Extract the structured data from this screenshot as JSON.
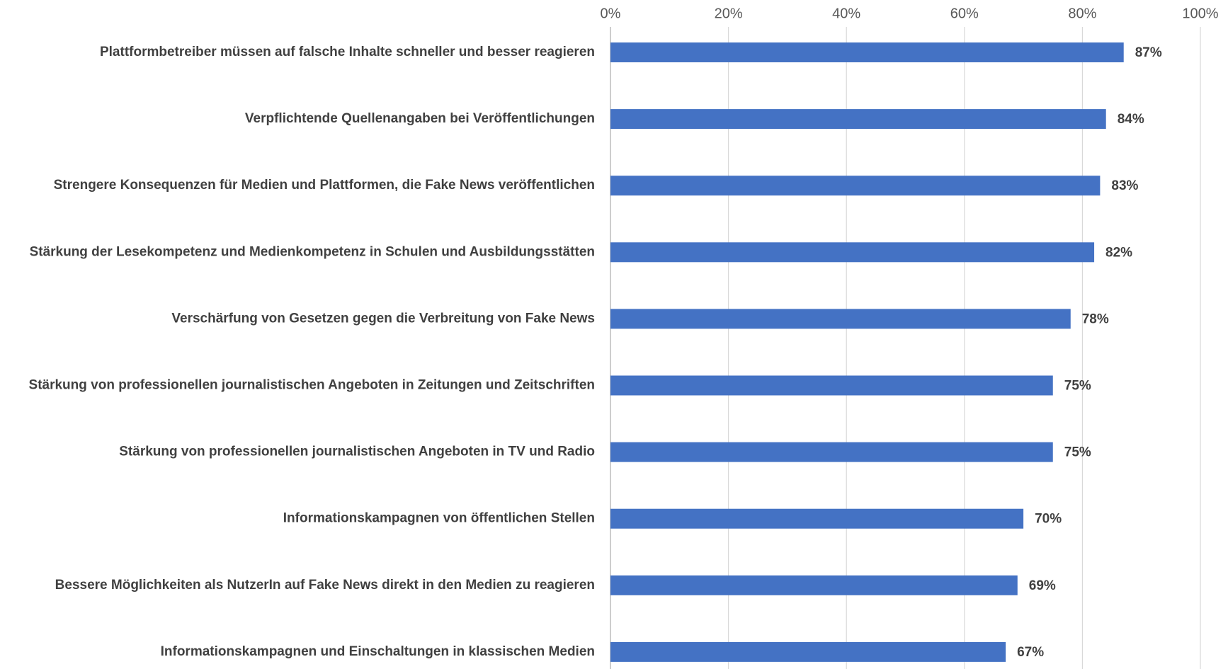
{
  "chart_data": {
    "type": "bar",
    "orientation": "horizontal",
    "categories": [
      "Plattformbetreiber müssen auf falsche Inhalte schneller und besser reagieren",
      "Verpflichtende Quellenangaben bei Veröffentlichungen",
      "Strengere Konsequenzen für Medien und Plattformen, die Fake News veröffentlichen",
      "Stärkung der Lesekompetenz und Medienkompetenz in Schulen und Ausbildungsstätten",
      "Verschärfung von Gesetzen gegen die Verbreitung von Fake News",
      "Stärkung von professionellen journalistischen Angeboten in Zeitungen und Zeitschriften",
      "Stärkung von professionellen journalistischen Angeboten in TV und Radio",
      "Informationskampagnen von öffentlichen Stellen",
      "Bessere Möglichkeiten als NutzerIn auf Fake News direkt in den Medien zu reagieren",
      "Informationskampagnen und Einschaltungen in klassischen Medien"
    ],
    "values": [
      87,
      84,
      83,
      82,
      78,
      75,
      75,
      70,
      69,
      67
    ],
    "value_labels": [
      "87%",
      "84%",
      "83%",
      "82%",
      "78%",
      "75%",
      "75%",
      "70%",
      "69%",
      "67%"
    ],
    "color": "#4472c4",
    "xlim": [
      0,
      100
    ],
    "xticks": [
      {
        "value": 0,
        "label": "0%"
      },
      {
        "value": 20,
        "label": "20%"
      },
      {
        "value": 40,
        "label": "40%"
      },
      {
        "value": 60,
        "label": "60%"
      },
      {
        "value": 80,
        "label": "80%"
      },
      {
        "value": 100,
        "label": "100%"
      }
    ],
    "grid": true
  }
}
